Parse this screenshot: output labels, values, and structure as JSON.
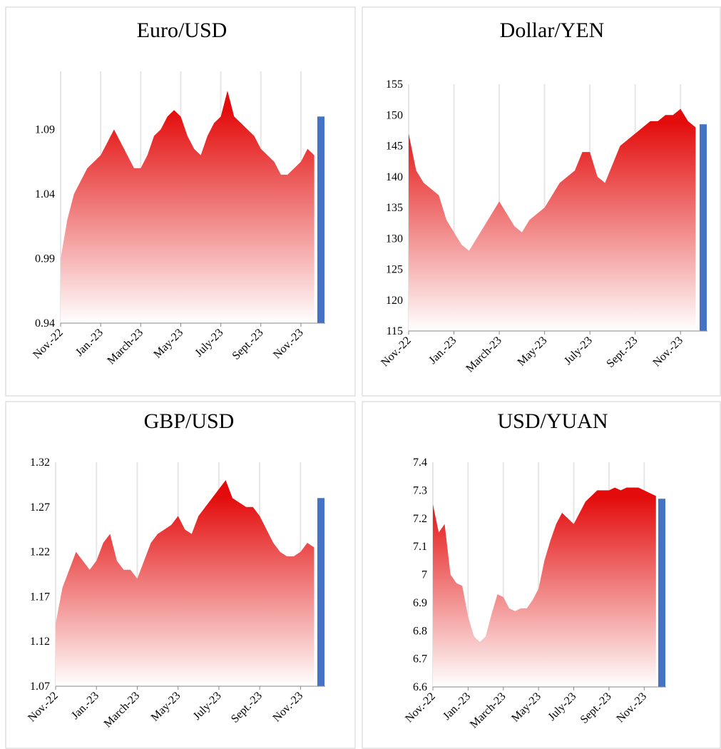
{
  "chart_data": [
    {
      "type": "area",
      "title": "Euro/USD",
      "categories": [
        "Nov.-22",
        null,
        null,
        null,
        null,
        null,
        "Jan.-23",
        null,
        null,
        null,
        null,
        null,
        "March-23",
        null,
        null,
        null,
        null,
        null,
        "May-23",
        null,
        null,
        null,
        null,
        null,
        "July-23",
        null,
        null,
        null,
        null,
        null,
        "Sept.-23",
        null,
        null,
        null,
        null,
        null,
        "Nov.-23",
        null,
        null,
        null
      ],
      "series": [
        {
          "color": "#e30b0b",
          "values": [
            0.99,
            1.02,
            1.04,
            1.05,
            1.06,
            1.065,
            1.07,
            1.08,
            1.09,
            1.08,
            1.07,
            1.06,
            1.06,
            1.07,
            1.085,
            1.09,
            1.1,
            1.105,
            1.1,
            1.085,
            1.075,
            1.07,
            1.085,
            1.095,
            1.1,
            1.12,
            1.1,
            1.095,
            1.09,
            1.085,
            1.075,
            1.07,
            1.065,
            1.055,
            1.055,
            1.06,
            1.065,
            1.075,
            1.07,
            null
          ]
        },
        {
          "type": "bar",
          "color": "#4472c4",
          "values": [
            null,
            null,
            null,
            null,
            null,
            null,
            null,
            null,
            null,
            null,
            null,
            null,
            null,
            null,
            null,
            null,
            null,
            null,
            null,
            null,
            null,
            null,
            null,
            null,
            null,
            null,
            null,
            null,
            null,
            null,
            null,
            null,
            null,
            null,
            null,
            null,
            null,
            null,
            null,
            1.1
          ]
        }
      ],
      "ylim": [
        0.94,
        1.135
      ],
      "yticks": [
        0.94,
        0.99,
        1.04,
        1.09
      ],
      "grid": true
    },
    {
      "type": "area",
      "title": "Dollar/YEN",
      "categories": [
        "Nov.-22",
        null,
        null,
        null,
        null,
        null,
        "Jan.-23",
        null,
        null,
        null,
        null,
        null,
        "March-23",
        null,
        null,
        null,
        null,
        null,
        "May-23",
        null,
        null,
        null,
        null,
        null,
        "July-23",
        null,
        null,
        null,
        null,
        null,
        "Sept.-23",
        null,
        null,
        null,
        null,
        null,
        "Nov.-23",
        null,
        null,
        null
      ],
      "series": [
        {
          "color": "#e30b0b",
          "values": [
            147,
            141,
            139,
            138,
            137,
            133,
            131,
            129,
            128,
            130,
            132,
            134,
            136,
            134,
            132,
            131,
            133,
            134,
            135,
            137,
            139,
            140,
            141,
            144,
            144,
            140,
            139,
            142,
            145,
            146,
            147,
            148,
            149,
            149,
            150,
            150,
            151,
            149,
            148,
            null
          ]
        },
        {
          "type": "bar",
          "color": "#4472c4",
          "values": [
            null,
            null,
            null,
            null,
            null,
            null,
            null,
            null,
            null,
            null,
            null,
            null,
            null,
            null,
            null,
            null,
            null,
            null,
            null,
            null,
            null,
            null,
            null,
            null,
            null,
            null,
            null,
            null,
            null,
            null,
            null,
            null,
            null,
            null,
            null,
            null,
            null,
            null,
            null,
            148.5
          ]
        }
      ],
      "ylim": [
        115,
        155
      ],
      "yticks": [
        115,
        120,
        125,
        130,
        135,
        140,
        145,
        150,
        155
      ],
      "grid": true
    },
    {
      "type": "area",
      "title": "GBP/USD",
      "categories": [
        "Nov.-22",
        null,
        null,
        null,
        null,
        null,
        "Jan.-23",
        null,
        null,
        null,
        null,
        null,
        "March-23",
        null,
        null,
        null,
        null,
        null,
        "May-23",
        null,
        null,
        null,
        null,
        null,
        "July-23",
        null,
        null,
        null,
        null,
        null,
        "Sept.-23",
        null,
        null,
        null,
        null,
        null,
        "Nov.-23",
        null,
        null,
        null
      ],
      "series": [
        {
          "color": "#e30b0b",
          "values": [
            1.14,
            1.18,
            1.2,
            1.22,
            1.21,
            1.2,
            1.21,
            1.23,
            1.24,
            1.21,
            1.2,
            1.2,
            1.19,
            1.21,
            1.23,
            1.24,
            1.245,
            1.25,
            1.26,
            1.245,
            1.24,
            1.26,
            1.27,
            1.28,
            1.29,
            1.3,
            1.28,
            1.275,
            1.27,
            1.27,
            1.26,
            1.245,
            1.23,
            1.22,
            1.215,
            1.215,
            1.22,
            1.23,
            1.225,
            null
          ]
        },
        {
          "type": "bar",
          "color": "#4472c4",
          "values": [
            null,
            null,
            null,
            null,
            null,
            null,
            null,
            null,
            null,
            null,
            null,
            null,
            null,
            null,
            null,
            null,
            null,
            null,
            null,
            null,
            null,
            null,
            null,
            null,
            null,
            null,
            null,
            null,
            null,
            null,
            null,
            null,
            null,
            null,
            null,
            null,
            null,
            null,
            null,
            1.28
          ]
        }
      ],
      "ylim": [
        1.07,
        1.32
      ],
      "yticks": [
        1.07,
        1.12,
        1.17,
        1.22,
        1.27,
        1.32
      ],
      "grid": true
    },
    {
      "type": "area",
      "title": "USD/YUAN",
      "categories": [
        "Nov.-22",
        null,
        null,
        null,
        null,
        null,
        "Jan.-23",
        null,
        null,
        null,
        null,
        null,
        "March-23",
        null,
        null,
        null,
        null,
        null,
        "May-23",
        null,
        null,
        null,
        null,
        null,
        "July-23",
        null,
        null,
        null,
        null,
        null,
        "Sept.-23",
        null,
        null,
        null,
        null,
        null,
        "Nov.-23",
        null,
        null,
        null
      ],
      "series": [
        {
          "color": "#e30b0b",
          "values": [
            7.25,
            7.15,
            7.18,
            7.0,
            6.97,
            6.96,
            6.85,
            6.78,
            6.76,
            6.78,
            6.86,
            6.93,
            6.92,
            6.88,
            6.87,
            6.88,
            6.88,
            6.91,
            6.95,
            7.05,
            7.12,
            7.18,
            7.22,
            7.2,
            7.18,
            7.22,
            7.26,
            7.28,
            7.3,
            7.3,
            7.3,
            7.31,
            7.3,
            7.31,
            7.31,
            7.31,
            7.3,
            7.29,
            7.28,
            null
          ]
        },
        {
          "type": "bar",
          "color": "#4472c4",
          "values": [
            null,
            null,
            null,
            null,
            null,
            null,
            null,
            null,
            null,
            null,
            null,
            null,
            null,
            null,
            null,
            null,
            null,
            null,
            null,
            null,
            null,
            null,
            null,
            null,
            null,
            null,
            null,
            null,
            null,
            null,
            null,
            null,
            null,
            null,
            null,
            null,
            null,
            null,
            null,
            7.27
          ]
        }
      ],
      "ylim": [
        6.6,
        7.4
      ],
      "yticks": [
        6.6,
        6.7,
        6.8,
        6.9,
        7,
        7.1,
        7.2,
        7.3,
        7.4
      ],
      "grid": true
    }
  ]
}
